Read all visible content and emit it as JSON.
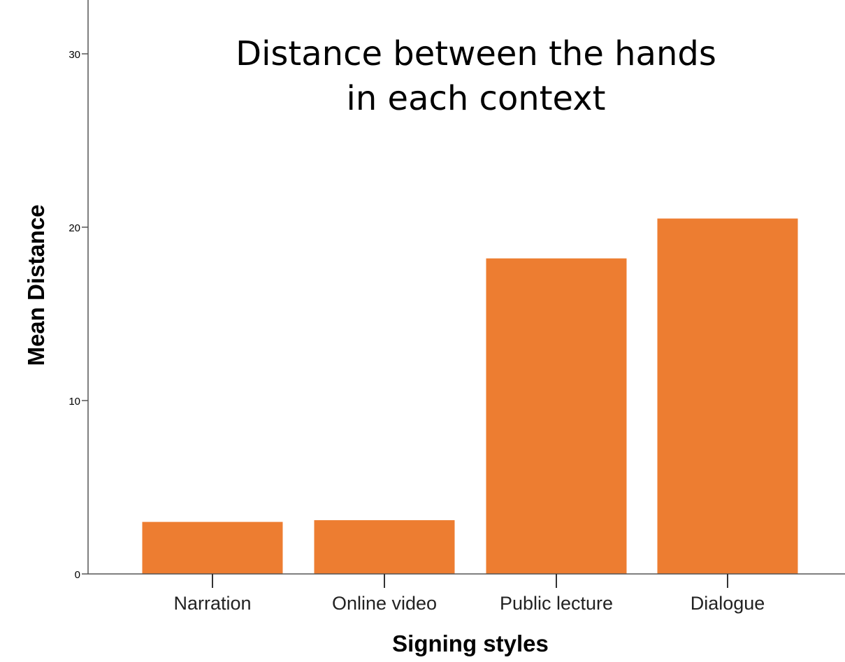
{
  "chart_data": {
    "type": "bar",
    "title_lines": [
      "Distance between the hands",
      "in each context"
    ],
    "xlabel": "Signing styles",
    "ylabel": "Mean Distance",
    "categories": [
      "Narration",
      "Online video",
      "Public lecture",
      "Dialogue"
    ],
    "values": [
      3.0,
      3.1,
      18.2,
      20.5
    ],
    "ylim": [
      0,
      33
    ],
    "yticks": [
      0,
      10,
      20,
      30
    ],
    "ytick_labels": [
      "0",
      "10",
      "20",
      "30"
    ],
    "grid": false,
    "legend": "none",
    "bar_color": "#ED7D31",
    "axis_color": "#555555"
  }
}
